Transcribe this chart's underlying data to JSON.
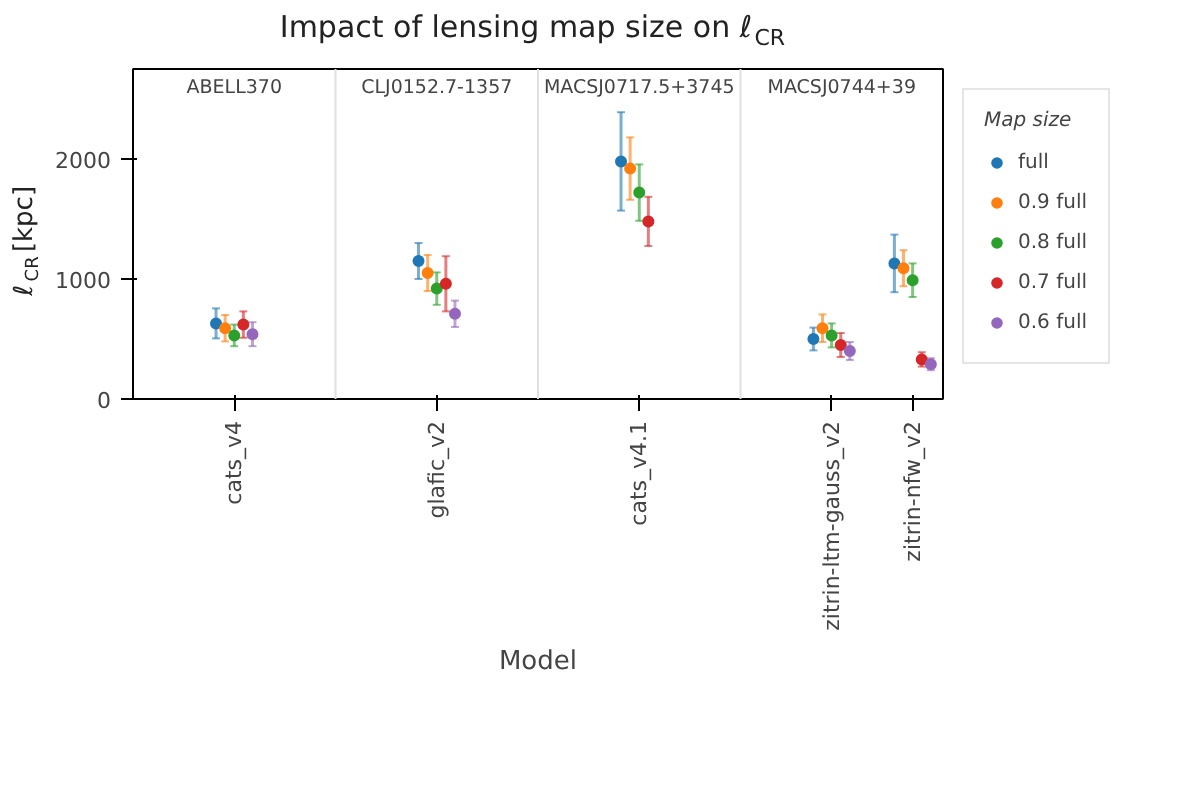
{
  "chart_data": {
    "type": "scatter",
    "title": "Impact of lensing map size on ℓ$_{CR}$",
    "xlabel": "Model",
    "ylabel": "ℓ$_{CR}$ [kpc]",
    "legend_title": "Map size",
    "legend": "right",
    "grid": false,
    "marker": "circle",
    "categories": [
      "cats_v4",
      "glafic_v2",
      "cats_v4.1",
      "zitrin-ltm-gauss_v2",
      "zitrin-nfw_v2"
    ],
    "ylim": [
      0,
      2750
    ],
    "yticks": [
      0,
      1000,
      2000
    ],
    "annotations": [
      "ABELL370",
      "CLJ0152.7-1357",
      "MACSJ0717.5+3745",
      "MACSJ0744+39"
    ],
    "series": [
      {
        "name": "full",
        "color": "#1f77b4",
        "values": [
          630,
          1150,
          1980,
          500,
          1130
        ],
        "errors": [
          125,
          150,
          410,
          95,
          240
        ]
      },
      {
        "name": "0.9 full",
        "color": "#ff7f0e",
        "values": [
          590,
          1050,
          1920,
          590,
          1090
        ],
        "errors": [
          110,
          150,
          260,
          115,
          150
        ]
      },
      {
        "name": "0.8 full",
        "color": "#2ca02c",
        "values": [
          530,
          920,
          1720,
          530,
          990
        ],
        "errors": [
          90,
          135,
          235,
          100,
          140
        ]
      },
      {
        "name": "0.7 full",
        "color": "#d62728",
        "values": [
          620,
          960,
          1480,
          450,
          330
        ],
        "errors": [
          110,
          230,
          205,
          100,
          60
        ]
      },
      {
        "name": "0.6 full",
        "color": "#9467bd",
        "values": [
          540,
          710,
          null,
          400,
          290
        ],
        "errors": [
          100,
          110,
          null,
          75,
          50
        ]
      }
    ]
  }
}
